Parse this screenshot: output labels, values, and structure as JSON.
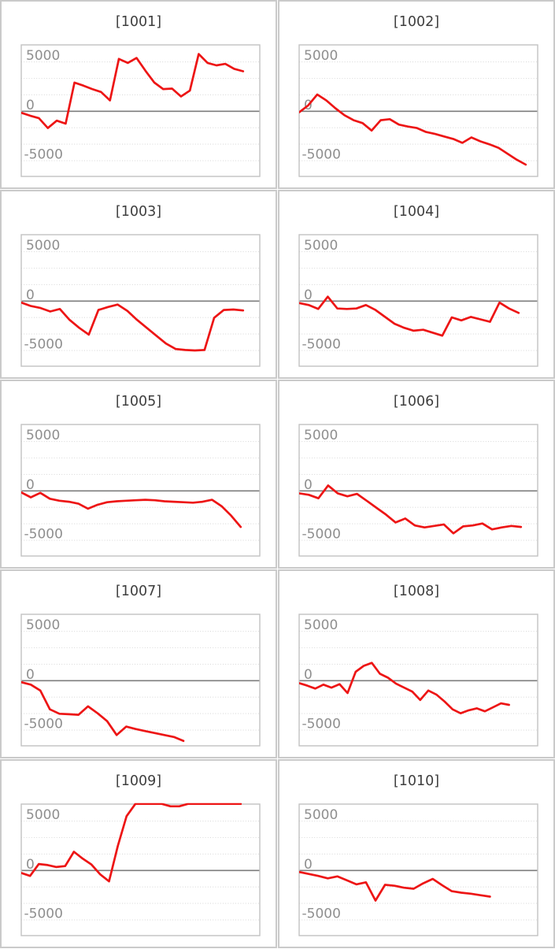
{
  "page": {
    "background": "#ffffff",
    "panel_border_color": "#cacaca",
    "plot_border_color": "#c2c2c2",
    "gridline_color": "#dadada",
    "zero_line_color": "#7d7d7d",
    "title_color": "#3e3e3e",
    "tick_label_color": "#8f8f8f"
  },
  "chart_data": {
    "type": "line",
    "layout": "small-multiples-grid-2x5",
    "line_color": "#ed1515",
    "axis": {
      "ylim": [
        -6667,
        6667
      ],
      "grid_interval": 1667,
      "grid_style": "dotted",
      "zero_line": "solid",
      "yticks": [
        {
          "label": "5000",
          "value": 5000
        },
        {
          "label": "0",
          "value": 0
        },
        {
          "label": "-5000",
          "value": -5000
        }
      ]
    },
    "charts": [
      {
        "title": "[1001]",
        "x_extent": 0.93,
        "values": [
          -150,
          -450,
          -700,
          -1700,
          -950,
          -1250,
          2900,
          2600,
          2250,
          1950,
          1100,
          5300,
          4900,
          5400,
          4100,
          2900,
          2250,
          2300,
          1500,
          2100,
          5800,
          4900,
          4650,
          4800,
          4300,
          4050
        ]
      },
      {
        "title": "[1002]",
        "x_extent": 0.95,
        "values": [
          -100,
          600,
          1700,
          1100,
          300,
          -400,
          -900,
          -1200,
          -1950,
          -900,
          -800,
          -1350,
          -1550,
          -1700,
          -2100,
          -2300,
          -2550,
          -2800,
          -3200,
          -2650,
          -3050,
          -3350,
          -3700,
          -4300,
          -4900,
          -5400
        ]
      },
      {
        "title": "[1003]",
        "x_extent": 0.93,
        "values": [
          -150,
          -500,
          -700,
          -1050,
          -800,
          -1900,
          -2700,
          -3400,
          -900,
          -600,
          -350,
          -1000,
          -1900,
          -2700,
          -3500,
          -4300,
          -4850,
          -4950,
          -5000,
          -4950,
          -1700,
          -900,
          -850,
          -950
        ]
      },
      {
        "title": "[1004]",
        "x_extent": 0.92,
        "values": [
          -200,
          -400,
          -800,
          450,
          -750,
          -800,
          -750,
          -400,
          -900,
          -1600,
          -2300,
          -2700,
          -3000,
          -2900,
          -3200,
          -3500,
          -1650,
          -1950,
          -1600,
          -1850,
          -2100,
          -150,
          -750,
          -1200
        ]
      },
      {
        "title": "[1005]",
        "x_extent": 0.92,
        "values": [
          -150,
          -650,
          -200,
          -800,
          -1000,
          -1100,
          -1300,
          -1800,
          -1400,
          -1150,
          -1050,
          -1000,
          -950,
          -900,
          -950,
          -1050,
          -1100,
          -1150,
          -1200,
          -1100,
          -900,
          -1550,
          -2500,
          -3650
        ]
      },
      {
        "title": "[1006]",
        "x_extent": 0.93,
        "values": [
          -250,
          -400,
          -750,
          550,
          -250,
          -550,
          -300,
          -1000,
          -1700,
          -2400,
          -3200,
          -2800,
          -3500,
          -3700,
          -3550,
          -3400,
          -4300,
          -3600,
          -3500,
          -3300,
          -3900,
          -3700,
          -3550,
          -3650
        ]
      },
      {
        "title": "[1007]",
        "x_extent": 0.68,
        "values": [
          -150,
          -400,
          -1000,
          -2900,
          -3350,
          -3400,
          -3450,
          -2600,
          -3300,
          -4100,
          -5500,
          -4650,
          -4900,
          -5100,
          -5300,
          -5500,
          -5700,
          -6100
        ]
      },
      {
        "title": "[1008]",
        "x_extent": 0.88,
        "values": [
          -250,
          -500,
          -800,
          -400,
          -700,
          -350,
          -1250,
          900,
          1500,
          1800,
          700,
          300,
          -300,
          -700,
          -1100,
          -1950,
          -1000,
          -1400,
          -2100,
          -2900,
          -3300,
          -3000,
          -2800,
          -3100,
          -2700,
          -2300,
          -2450
        ]
      },
      {
        "title": "[1009]",
        "x_extent": 0.92,
        "values": [
          -250,
          -550,
          650,
          550,
          350,
          450,
          1900,
          1200,
          600,
          -400,
          -1100,
          2500,
          5500,
          6750,
          6750,
          6750,
          6750,
          6500,
          6500,
          6750,
          6750,
          6750,
          6750,
          6750,
          6750,
          6750
        ]
      },
      {
        "title": "[1010]",
        "x_extent": 0.8,
        "values": [
          -150,
          -350,
          -550,
          -800,
          -600,
          -1000,
          -1400,
          -1200,
          -3050,
          -1450,
          -1550,
          -1750,
          -1850,
          -1300,
          -850,
          -1500,
          -2100,
          -2250,
          -2350,
          -2500,
          -2650
        ]
      }
    ]
  }
}
